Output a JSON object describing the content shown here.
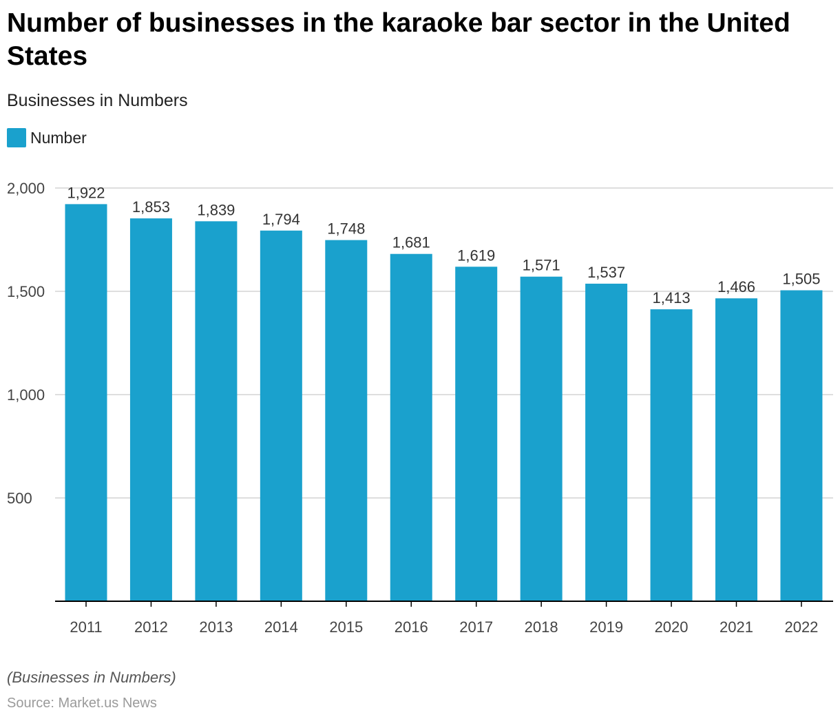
{
  "title": "Number of businesses in the karaoke bar sector in the United States",
  "subtitle": "Businesses in Numbers",
  "legend": {
    "label": "Number",
    "color": "#1aa1cd"
  },
  "note": "(Businesses in Numbers)",
  "source": "Source: Market.us News",
  "chart_data": {
    "type": "bar",
    "categories": [
      "2011",
      "2012",
      "2013",
      "2014",
      "2015",
      "2016",
      "2017",
      "2018",
      "2019",
      "2020",
      "2021",
      "2022"
    ],
    "series": [
      {
        "name": "Number",
        "values": [
          1922,
          1853,
          1839,
          1794,
          1748,
          1681,
          1619,
          1571,
          1537,
          1413,
          1466,
          1505
        ],
        "labels": [
          "1,922",
          "1,853",
          "1,839",
          "1,794",
          "1,748",
          "1,681",
          "1,619",
          "1,571",
          "1,537",
          "1,413",
          "1,466",
          "1,505"
        ]
      }
    ],
    "ylim": [
      0,
      2000
    ],
    "yticks": [
      500,
      1000,
      1500,
      2000
    ],
    "ytick_labels": [
      "500",
      "1,000",
      "1,500",
      "2,000"
    ],
    "grid": true,
    "legend_position": "top-left",
    "colors": {
      "bar": "#1aa1cd",
      "grid": "#d4d4d4",
      "axis": "#000000",
      "tick_text": "#444444",
      "value_text": "#333333"
    }
  }
}
